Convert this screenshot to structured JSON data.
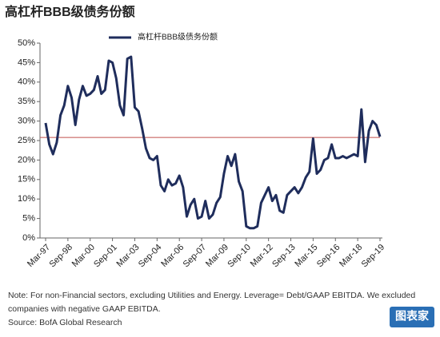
{
  "chart_data": {
    "type": "line",
    "title": "高杠杆BBB级债务份额",
    "categories": [
      "Mar-97",
      null,
      null,
      null,
      null,
      null,
      "Sep-98",
      null,
      null,
      null,
      null,
      null,
      "Mar-00",
      null,
      null,
      null,
      null,
      null,
      "Sep-01",
      null,
      null,
      null,
      null,
      null,
      "Mar-03",
      null,
      null,
      null,
      null,
      null,
      "Sep-04",
      null,
      null,
      null,
      null,
      null,
      "Mar-06",
      null,
      null,
      null,
      null,
      null,
      "Sep-07",
      null,
      null,
      null,
      null,
      null,
      "Mar-09",
      null,
      null,
      null,
      null,
      null,
      "Sep-10",
      null,
      null,
      null,
      null,
      null,
      "Mar-12",
      null,
      null,
      null,
      null,
      null,
      "Sep-13",
      null,
      null,
      null,
      null,
      null,
      "Mar-15",
      null,
      null,
      null,
      null,
      null,
      "Sep-16",
      null,
      null,
      null,
      null,
      null,
      "Mar-18",
      null,
      null,
      null,
      null,
      null,
      "Sep-19"
    ],
    "series": [
      {
        "name": "高杠杆BBB级债务份额",
        "color": "#1f2d5c",
        "values": [
          29.5,
          24,
          21.5,
          24.5,
          31.5,
          34,
          39,
          36,
          29,
          35.5,
          39,
          36.5,
          37,
          38,
          41.5,
          37,
          38,
          45.5,
          45,
          41,
          34,
          31.5,
          46,
          46.5,
          33.5,
          32.5,
          28,
          23,
          20.5,
          20,
          21,
          13.5,
          12,
          15,
          13.5,
          14,
          16,
          13,
          5.5,
          8.5,
          10,
          5,
          5.5,
          9.5,
          5,
          6,
          9,
          10.5,
          16.5,
          21,
          18.5,
          21.5,
          14.5,
          12,
          3,
          2.5,
          2.5,
          3,
          9,
          11,
          13,
          9.5,
          11,
          7,
          6.5,
          11,
          12,
          13,
          11.5,
          13,
          15.5,
          17,
          25.5,
          16.5,
          17.5,
          20,
          20.5,
          24,
          20.5,
          20.5,
          21,
          20.5,
          21,
          21.5,
          21,
          33,
          19.5,
          27.5,
          30,
          29,
          26
        ]
      }
    ],
    "reference_line": {
      "value": 25.8,
      "color": "#c0504d"
    },
    "ylim": [
      0,
      50
    ],
    "yticks": [
      {
        "value": 0,
        "label": "0%"
      },
      {
        "value": 5,
        "label": "5%"
      },
      {
        "value": 10,
        "label": "10%"
      },
      {
        "value": 15,
        "label": "15%"
      },
      {
        "value": 20,
        "label": "20%"
      },
      {
        "value": 25,
        "label": "25%"
      },
      {
        "value": 30,
        "label": "30%"
      },
      {
        "value": 35,
        "label": "35%"
      },
      {
        "value": 40,
        "label": "40%"
      },
      {
        "value": 45,
        "label": "45%"
      },
      {
        "value": 50,
        "label": "50%"
      }
    ],
    "notes": [
      "Note: For non-Financial sectors, excluding Utilities and Energy. Leverage= Debt/GAAP EBITDA. We excluded",
      "companies with negative GAAP EBITDA.",
      "Source: BofA Global Research"
    ],
    "logo": "图表家"
  }
}
